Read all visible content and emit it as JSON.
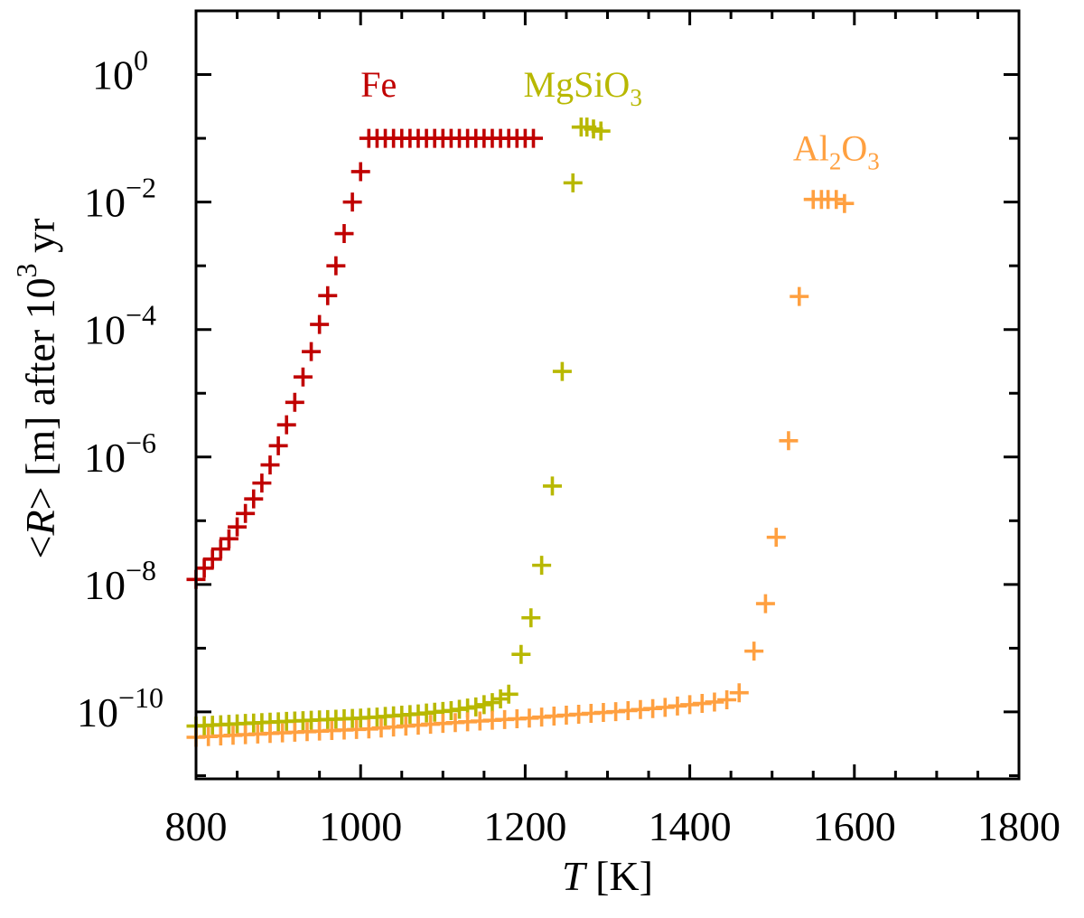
{
  "chart_data": {
    "type": "scatter",
    "title": "",
    "xlabel": {
      "var": "T",
      "unit": "[K]"
    },
    "ylabel": {
      "prefix": "<",
      "var": "R",
      "suffix": "> [m] after 10",
      "sup": "3",
      "tail": " yr"
    },
    "xscale": "linear",
    "yscale": "log",
    "xlim": [
      800,
      1800
    ],
    "ylim_log10": [
      -11.05,
      1.0
    ],
    "xticks": [
      800,
      1000,
      1200,
      1400,
      1600,
      1800
    ],
    "xtick_labels": [
      "800",
      "1000",
      "1200",
      "1400",
      "1600",
      "1800"
    ],
    "yticks_log10": [
      0,
      -2,
      -4,
      -6,
      -8,
      -10
    ],
    "ytick_labels": [
      {
        "base": "10",
        "exp": "0"
      },
      {
        "base": "10",
        "exp": "−2"
      },
      {
        "base": "10",
        "exp": "−4"
      },
      {
        "base": "10",
        "exp": "−6"
      },
      {
        "base": "10",
        "exp": "−8"
      },
      {
        "base": "10",
        "exp": "−10"
      }
    ],
    "grid": false,
    "marker": "plus",
    "series": [
      {
        "name": "Fe",
        "label": {
          "parts": [
            {
              "text": "Fe"
            }
          ]
        },
        "color": "#c00000",
        "points": [
          [
            800,
            1.2e-08
          ],
          [
            810,
            1.8e-08
          ],
          [
            820,
            2.5e-08
          ],
          [
            830,
            3.6e-08
          ],
          [
            840,
            5.2e-08
          ],
          [
            850,
            8e-08
          ],
          [
            860,
            1.3e-07
          ],
          [
            870,
            2.2e-07
          ],
          [
            880,
            3.9e-07
          ],
          [
            890,
            7.5e-07
          ],
          [
            900,
            1.5e-06
          ],
          [
            910,
            3.2e-06
          ],
          [
            920,
            7.2e-06
          ],
          [
            930,
            1.8e-05
          ],
          [
            940,
            4.5e-05
          ],
          [
            950,
            0.00012
          ],
          [
            960,
            0.00034
          ],
          [
            970,
            0.001
          ],
          [
            980,
            0.0032
          ],
          [
            990,
            0.01
          ],
          [
            1000,
            0.03
          ],
          [
            1010,
            0.1
          ],
          [
            1020,
            0.1
          ],
          [
            1030,
            0.1
          ],
          [
            1040,
            0.1
          ],
          [
            1050,
            0.1
          ],
          [
            1060,
            0.1
          ],
          [
            1070,
            0.1
          ],
          [
            1080,
            0.1
          ],
          [
            1090,
            0.1
          ],
          [
            1100,
            0.1
          ],
          [
            1110,
            0.1
          ],
          [
            1120,
            0.1
          ],
          [
            1130,
            0.1
          ],
          [
            1140,
            0.1
          ],
          [
            1150,
            0.1
          ],
          [
            1160,
            0.1
          ],
          [
            1170,
            0.1
          ],
          [
            1180,
            0.1
          ],
          [
            1190,
            0.1
          ],
          [
            1200,
            0.1
          ],
          [
            1210,
            0.1
          ]
        ]
      },
      {
        "name": "MgSiO3",
        "label": {
          "parts": [
            {
              "text": "MgSiO"
            },
            {
              "sub": "3"
            }
          ]
        },
        "color": "#b8b800",
        "points": [
          [
            800,
            6e-11
          ],
          [
            810,
            6.1e-11
          ],
          [
            820,
            6.2e-11
          ],
          [
            830,
            6.3e-11
          ],
          [
            840,
            6.4e-11
          ],
          [
            850,
            6.5e-11
          ],
          [
            860,
            6.6e-11
          ],
          [
            870,
            6.7e-11
          ],
          [
            880,
            6.8e-11
          ],
          [
            890,
            6.9e-11
          ],
          [
            900,
            7e-11
          ],
          [
            910,
            7.1e-11
          ],
          [
            920,
            7.2e-11
          ],
          [
            930,
            7.3e-11
          ],
          [
            940,
            7.4e-11
          ],
          [
            950,
            7.5e-11
          ],
          [
            960,
            7.6e-11
          ],
          [
            970,
            7.7e-11
          ],
          [
            980,
            7.8e-11
          ],
          [
            990,
            7.9e-11
          ],
          [
            1000,
            8e-11
          ],
          [
            1010,
            8.2e-11
          ],
          [
            1020,
            8.3e-11
          ],
          [
            1030,
            8.5e-11
          ],
          [
            1040,
            8.7e-11
          ],
          [
            1050,
            8.9e-11
          ],
          [
            1060,
            9.1e-11
          ],
          [
            1070,
            9.3e-11
          ],
          [
            1080,
            9.6e-11
          ],
          [
            1090,
            9.9e-11
          ],
          [
            1100,
            1.02e-10
          ],
          [
            1110,
            1.05e-10
          ],
          [
            1120,
            1.1e-10
          ],
          [
            1130,
            1.15e-10
          ],
          [
            1140,
            1.2e-10
          ],
          [
            1150,
            1.3e-10
          ],
          [
            1160,
            1.4e-10
          ],
          [
            1170,
            1.6e-10
          ],
          [
            1180,
            1.9e-10
          ],
          [
            1195,
            8e-10
          ],
          [
            1207,
            3e-09
          ],
          [
            1220,
            2e-08
          ],
          [
            1233,
            3.5e-07
          ],
          [
            1245,
            2.2e-05
          ],
          [
            1258,
            0.02
          ],
          [
            1268,
            0.15
          ],
          [
            1275,
            0.15
          ],
          [
            1283,
            0.14
          ],
          [
            1292,
            0.13
          ]
        ]
      },
      {
        "name": "Al2O3",
        "label": {
          "parts": [
            {
              "text": "Al"
            },
            {
              "sub": "2"
            },
            {
              "text": "O"
            },
            {
              "sub": "3"
            }
          ]
        },
        "color": "#ffa040",
        "points": [
          [
            800,
            4e-11
          ],
          [
            815,
            4.1e-11
          ],
          [
            830,
            4.2e-11
          ],
          [
            845,
            4.3e-11
          ],
          [
            860,
            4.4e-11
          ],
          [
            875,
            4.5e-11
          ],
          [
            890,
            4.6e-11
          ],
          [
            905,
            4.7e-11
          ],
          [
            920,
            4.8e-11
          ],
          [
            935,
            4.9e-11
          ],
          [
            950,
            5e-11
          ],
          [
            965,
            5.1e-11
          ],
          [
            980,
            5.2e-11
          ],
          [
            995,
            5.3e-11
          ],
          [
            1010,
            5.4e-11
          ],
          [
            1025,
            5.6e-11
          ],
          [
            1040,
            5.8e-11
          ],
          [
            1055,
            6e-11
          ],
          [
            1070,
            6.2e-11
          ],
          [
            1085,
            6.4e-11
          ],
          [
            1100,
            6.6e-11
          ],
          [
            1115,
            6.8e-11
          ],
          [
            1130,
            7e-11
          ],
          [
            1145,
            7.2e-11
          ],
          [
            1160,
            7.4e-11
          ],
          [
            1175,
            7.6e-11
          ],
          [
            1190,
            7.8e-11
          ],
          [
            1205,
            8e-11
          ],
          [
            1220,
            8.3e-11
          ],
          [
            1235,
            8.6e-11
          ],
          [
            1250,
            8.9e-11
          ],
          [
            1265,
            9.2e-11
          ],
          [
            1280,
            9.5e-11
          ],
          [
            1295,
            9.8e-11
          ],
          [
            1310,
            1.01e-10
          ],
          [
            1325,
            1.05e-10
          ],
          [
            1340,
            1.09e-10
          ],
          [
            1355,
            1.13e-10
          ],
          [
            1370,
            1.18e-10
          ],
          [
            1385,
            1.24e-10
          ],
          [
            1400,
            1.3e-10
          ],
          [
            1415,
            1.36e-10
          ],
          [
            1430,
            1.43e-10
          ],
          [
            1445,
            1.55e-10
          ],
          [
            1460,
            2e-10
          ],
          [
            1478,
            9e-10
          ],
          [
            1492,
            5e-09
          ],
          [
            1505,
            5.5e-08
          ],
          [
            1520,
            1.8e-06
          ],
          [
            1533,
            0.00033
          ],
          [
            1550,
            0.011
          ],
          [
            1560,
            0.011
          ],
          [
            1568,
            0.011
          ],
          [
            1578,
            0.011
          ],
          [
            1588,
            0.0095
          ]
        ]
      }
    ]
  }
}
